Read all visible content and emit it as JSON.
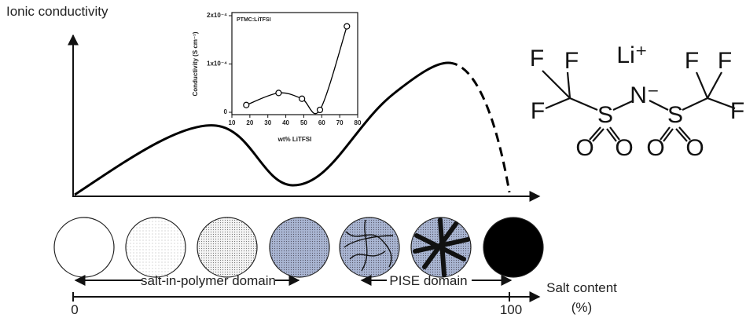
{
  "figure": {
    "y_axis_label": "Ionic conductivity",
    "x_axis_label": "Salt content",
    "x_axis_unit": "(%)",
    "x_start": "0",
    "x_end": "100",
    "left_domain": "salt-in-polymer domain",
    "right_domain": "PISE domain"
  },
  "molecule": {
    "atoms": [
      "F",
      "F",
      "F",
      "S",
      "N⁻",
      "S",
      "F",
      "F",
      "F",
      "O",
      "O",
      "O",
      "O"
    ],
    "counterion": "Li⁺"
  },
  "chart_data": {
    "type": "line",
    "title": "PTMC:LiTFSI",
    "x_label": "wt% LiTFSI",
    "y_label": "Conductivity (S cm⁻¹)",
    "x": [
      18,
      36,
      49,
      59,
      74
    ],
    "values": [
      1.5e-05,
      4e-05,
      2.8e-05,
      5e-06,
      0.000178
    ],
    "color": "#000000",
    "xlim": [
      10,
      80
    ],
    "xticks": [
      10,
      20,
      30,
      40,
      50,
      60,
      70,
      80
    ],
    "ylim": [
      0,
      0.0002
    ],
    "yticks": [
      0,
      {
        "value": 0.0001,
        "label": "1x10⁻⁴"
      },
      {
        "value": 0.0002,
        "label": "2x10⁻⁴"
      }
    ]
  }
}
